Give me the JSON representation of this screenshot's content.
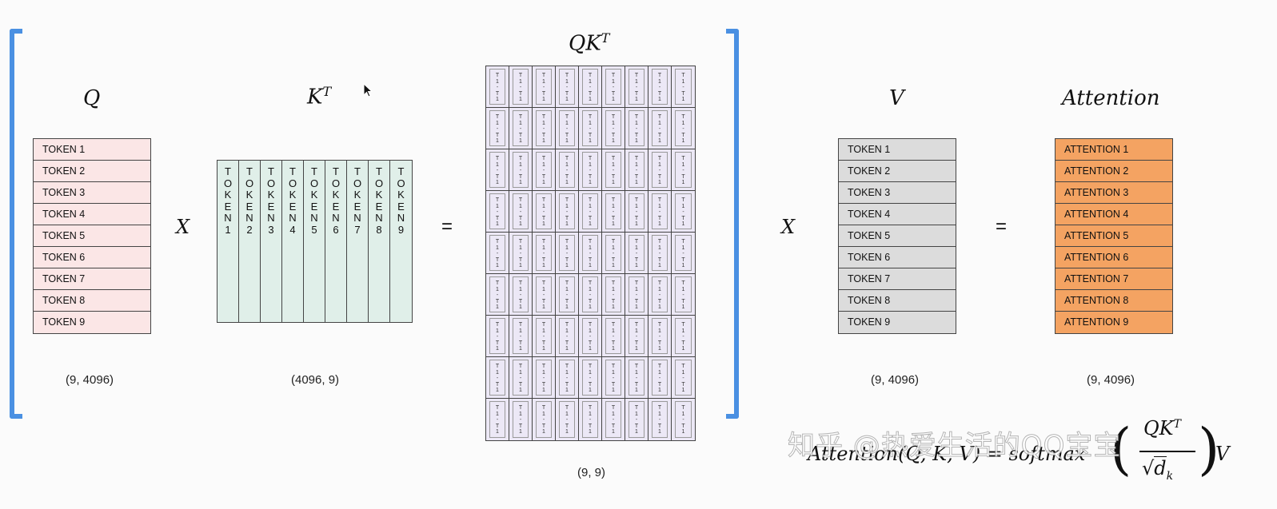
{
  "labels": {
    "q": "Q",
    "kt_base": "K",
    "kt_sup": "T",
    "qkt_base": "QK",
    "qkt_sup": "T",
    "v": "V",
    "attention": "Attention"
  },
  "operators": {
    "times1": "X",
    "equals1": "=",
    "times2": "X",
    "equals2": "="
  },
  "dims": {
    "q": "(9, 4096)",
    "kt": "(4096, 9)",
    "qkt": "(9, 9)",
    "v": "(9, 4096)",
    "attention": "(9, 4096)"
  },
  "q_rows": [
    "TOKEN 1",
    "TOKEN 2",
    "TOKEN 3",
    "TOKEN 4",
    "TOKEN 5",
    "TOKEN 6",
    "TOKEN 7",
    "TOKEN 8",
    "TOKEN 9"
  ],
  "kt_cols": [
    [
      "T",
      "O",
      "K",
      "E",
      "N",
      "1"
    ],
    [
      "T",
      "O",
      "K",
      "E",
      "N",
      "2"
    ],
    [
      "T",
      "O",
      "K",
      "E",
      "N",
      "3"
    ],
    [
      "T",
      "O",
      "K",
      "E",
      "N",
      "4"
    ],
    [
      "T",
      "O",
      "K",
      "E",
      "N",
      "5"
    ],
    [
      "T",
      "O",
      "K",
      "E",
      "N",
      "6"
    ],
    [
      "T",
      "O",
      "K",
      "E",
      "N",
      "7"
    ],
    [
      "T",
      "O",
      "K",
      "E",
      "N",
      "8"
    ],
    [
      "T",
      "O",
      "K",
      "E",
      "N",
      "9"
    ]
  ],
  "qkt_cell_text": [
    "T",
    "1",
    "-",
    "T",
    "1"
  ],
  "v_rows": [
    "TOKEN 1",
    "TOKEN 2",
    "TOKEN 3",
    "TOKEN 4",
    "TOKEN 5",
    "TOKEN 6",
    "TOKEN 7",
    "TOKEN 8",
    "TOKEN 9"
  ],
  "attention_rows": [
    "ATTENTION 1",
    "ATTENTION 2",
    "ATTENTION 3",
    "ATTENTION 4",
    "ATTENTION 5",
    "ATTENTION 6",
    "ATTENTION 7",
    "ATTENTION 8",
    "ATTENTION 9"
  ],
  "formula": {
    "lhs": "Attention(Q, K, V) = softmax",
    "numerator_base": "QK",
    "numerator_sup": "T",
    "denominator": "d",
    "denominator_sub": "k",
    "tail": "V"
  },
  "watermark": "知乎 @热爱生活的QQ宝宝",
  "colors": {
    "bracket": "#4a90e2",
    "q_fill": "#fbe6e6",
    "kt_fill": "#e0efe9",
    "qkt_fill": "#ece8f6",
    "v_fill": "#dcdcdc",
    "attention_fill": "#f4a362"
  }
}
